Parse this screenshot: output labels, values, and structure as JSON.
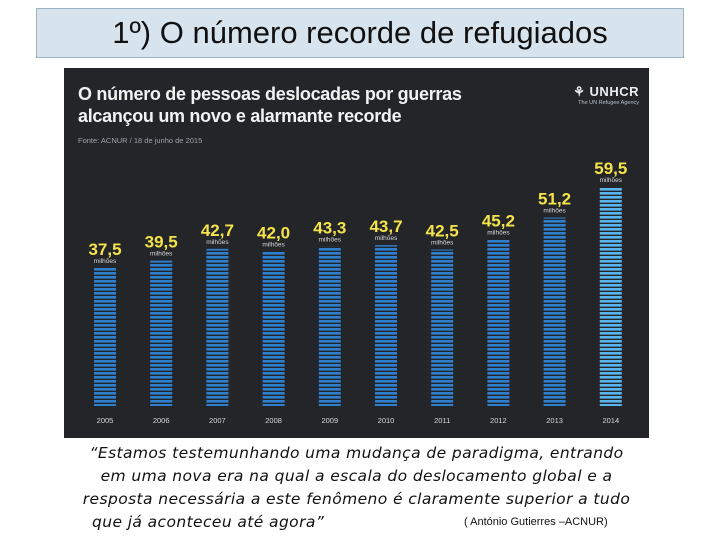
{
  "slide": {
    "title": "1º) O número recorde de refugiados"
  },
  "chart_header": {
    "title_line1": "O número de pessoas deslocadas por guerras",
    "title_line2": "alcançou um novo e alarmante recorde",
    "source": "Fonte: ACNUR / 18 de junho de 2015",
    "logo": "UNHCR",
    "logo_sub": "The UN Refugee Agency"
  },
  "chart_data": {
    "type": "bar",
    "title": "O número de pessoas deslocadas por guerras alcançou um novo e alarmante recorde",
    "categories": [
      "2005",
      "2006",
      "2007",
      "2008",
      "2009",
      "2010",
      "2011",
      "2012",
      "2013",
      "2014"
    ],
    "values": [
      37.5,
      39.5,
      42.7,
      42.0,
      43.3,
      43.7,
      42.5,
      45.2,
      51.2,
      59.5
    ],
    "value_labels": [
      "37,5",
      "39,5",
      "42,7",
      "42,0",
      "43,3",
      "43,7",
      "42,5",
      "45,2",
      "51,2",
      "59,5"
    ],
    "unit_label": "milhões",
    "xlabel": "",
    "ylabel": "",
    "ylim": [
      0,
      59.5
    ],
    "colors": {
      "bar": "#2f7fcf",
      "bar_last": "#5ab4ee",
      "value": "#f4e34a",
      "unit": "#d8d8d8",
      "tick": "#d8d8d8"
    }
  },
  "quote": {
    "line1": "“Estamos testemunhando uma mudança de paradigma, entrando",
    "line2": "em uma nova era na qual a escala do deslocamento global e a",
    "line3": "resposta necessária a este fenômeno é claramente superior a tudo",
    "line4": "que já aconteceu até agora”",
    "author": "( António Gutierres –ACNUR)"
  }
}
